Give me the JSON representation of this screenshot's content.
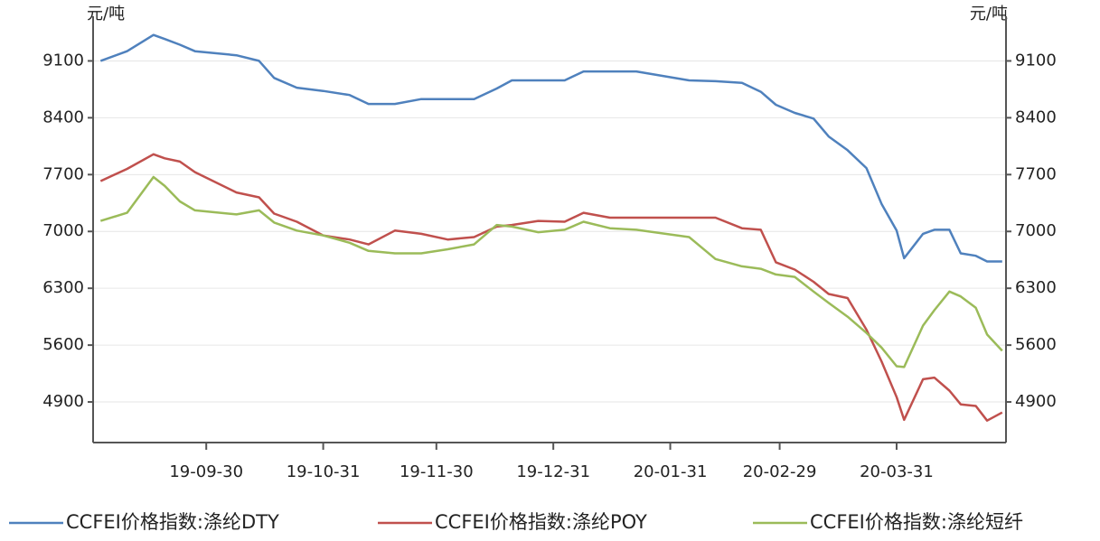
{
  "chart_data": {
    "type": "line",
    "y_label": "元/吨",
    "y2_label": "元/吨",
    "x": [
      "2019-09-02",
      "2019-09-09",
      "2019-09-16",
      "2019-09-19",
      "2019-09-23",
      "2019-09-27",
      "2019-10-08",
      "2019-10-14",
      "2019-10-18",
      "2019-10-24",
      "2019-10-31",
      "2019-11-07",
      "2019-11-12",
      "2019-11-19",
      "2019-11-26",
      "2019-12-03",
      "2019-12-10",
      "2019-12-16",
      "2019-12-20",
      "2019-12-27",
      "2020-01-03",
      "2020-01-08",
      "2020-01-15",
      "2020-01-22",
      "2020-02-05",
      "2020-02-12",
      "2020-02-19",
      "2020-02-24",
      "2020-02-28",
      "2020-03-04",
      "2020-03-09",
      "2020-03-13",
      "2020-03-18",
      "2020-03-23",
      "2020-03-27",
      "2020-03-31",
      "2020-04-02",
      "2020-04-07",
      "2020-04-10",
      "2020-04-14",
      "2020-04-17",
      "2020-04-21",
      "2020-04-24",
      "2020-04-28"
    ],
    "series": [
      {
        "name": "CCFEI价格指数:涤纶DTY",
        "color": "#4f81bd",
        "values": [
          9100,
          9220,
          9420,
          9370,
          9300,
          9220,
          9170,
          9100,
          8890,
          8770,
          8730,
          8680,
          8570,
          8570,
          8630,
          8630,
          8630,
          8760,
          8860,
          8860,
          8860,
          8970,
          8970,
          8970,
          8860,
          8850,
          8830,
          8720,
          8560,
          8460,
          8390,
          8170,
          8000,
          7780,
          7340,
          7010,
          6670,
          6970,
          7020,
          7020,
          6730,
          6700,
          6630,
          6630
        ]
      },
      {
        "name": "CCFEI价格指数:涤纶POY",
        "color": "#c0504d",
        "values": [
          7620,
          7770,
          7950,
          7900,
          7860,
          7730,
          7480,
          7420,
          7220,
          7120,
          6950,
          6900,
          6840,
          7010,
          6970,
          6900,
          6930,
          7060,
          7080,
          7130,
          7120,
          7230,
          7170,
          7170,
          7170,
          7170,
          7040,
          7020,
          6620,
          6530,
          6380,
          6230,
          6180,
          5790,
          5400,
          4960,
          4680,
          5180,
          5200,
          5040,
          4870,
          4850,
          4670,
          4770
        ]
      },
      {
        "name": "CCFEI价格指数:涤纶短纤",
        "color": "#9bbb59",
        "values": [
          7130,
          7230,
          7670,
          7560,
          7370,
          7260,
          7210,
          7260,
          7110,
          7010,
          6950,
          6860,
          6760,
          6730,
          6730,
          6780,
          6840,
          7080,
          7060,
          6990,
          7020,
          7120,
          7040,
          7020,
          6930,
          6660,
          6570,
          6540,
          6470,
          6440,
          6260,
          6120,
          5950,
          5750,
          5570,
          5340,
          5330,
          5840,
          6030,
          6260,
          6200,
          6060,
          5730,
          5530
        ]
      }
    ],
    "xlim": [
      "2019-08-31",
      "2020-04-29"
    ],
    "xticks": [
      {
        "value": "2019-09-30",
        "label": "19-09-30"
      },
      {
        "value": "2019-10-31",
        "label": "19-10-31"
      },
      {
        "value": "2019-11-30",
        "label": "19-11-30"
      },
      {
        "value": "2019-12-31",
        "label": "19-12-31"
      },
      {
        "value": "2020-01-31",
        "label": "20-01-31"
      },
      {
        "value": "2020-02-29",
        "label": "20-02-29"
      },
      {
        "value": "2020-03-31",
        "label": "20-03-31"
      }
    ],
    "ylim": [
      4400,
      9650
    ],
    "yticks": [
      4900,
      5600,
      6300,
      7000,
      7700,
      8400,
      9100
    ],
    "grid": true
  }
}
